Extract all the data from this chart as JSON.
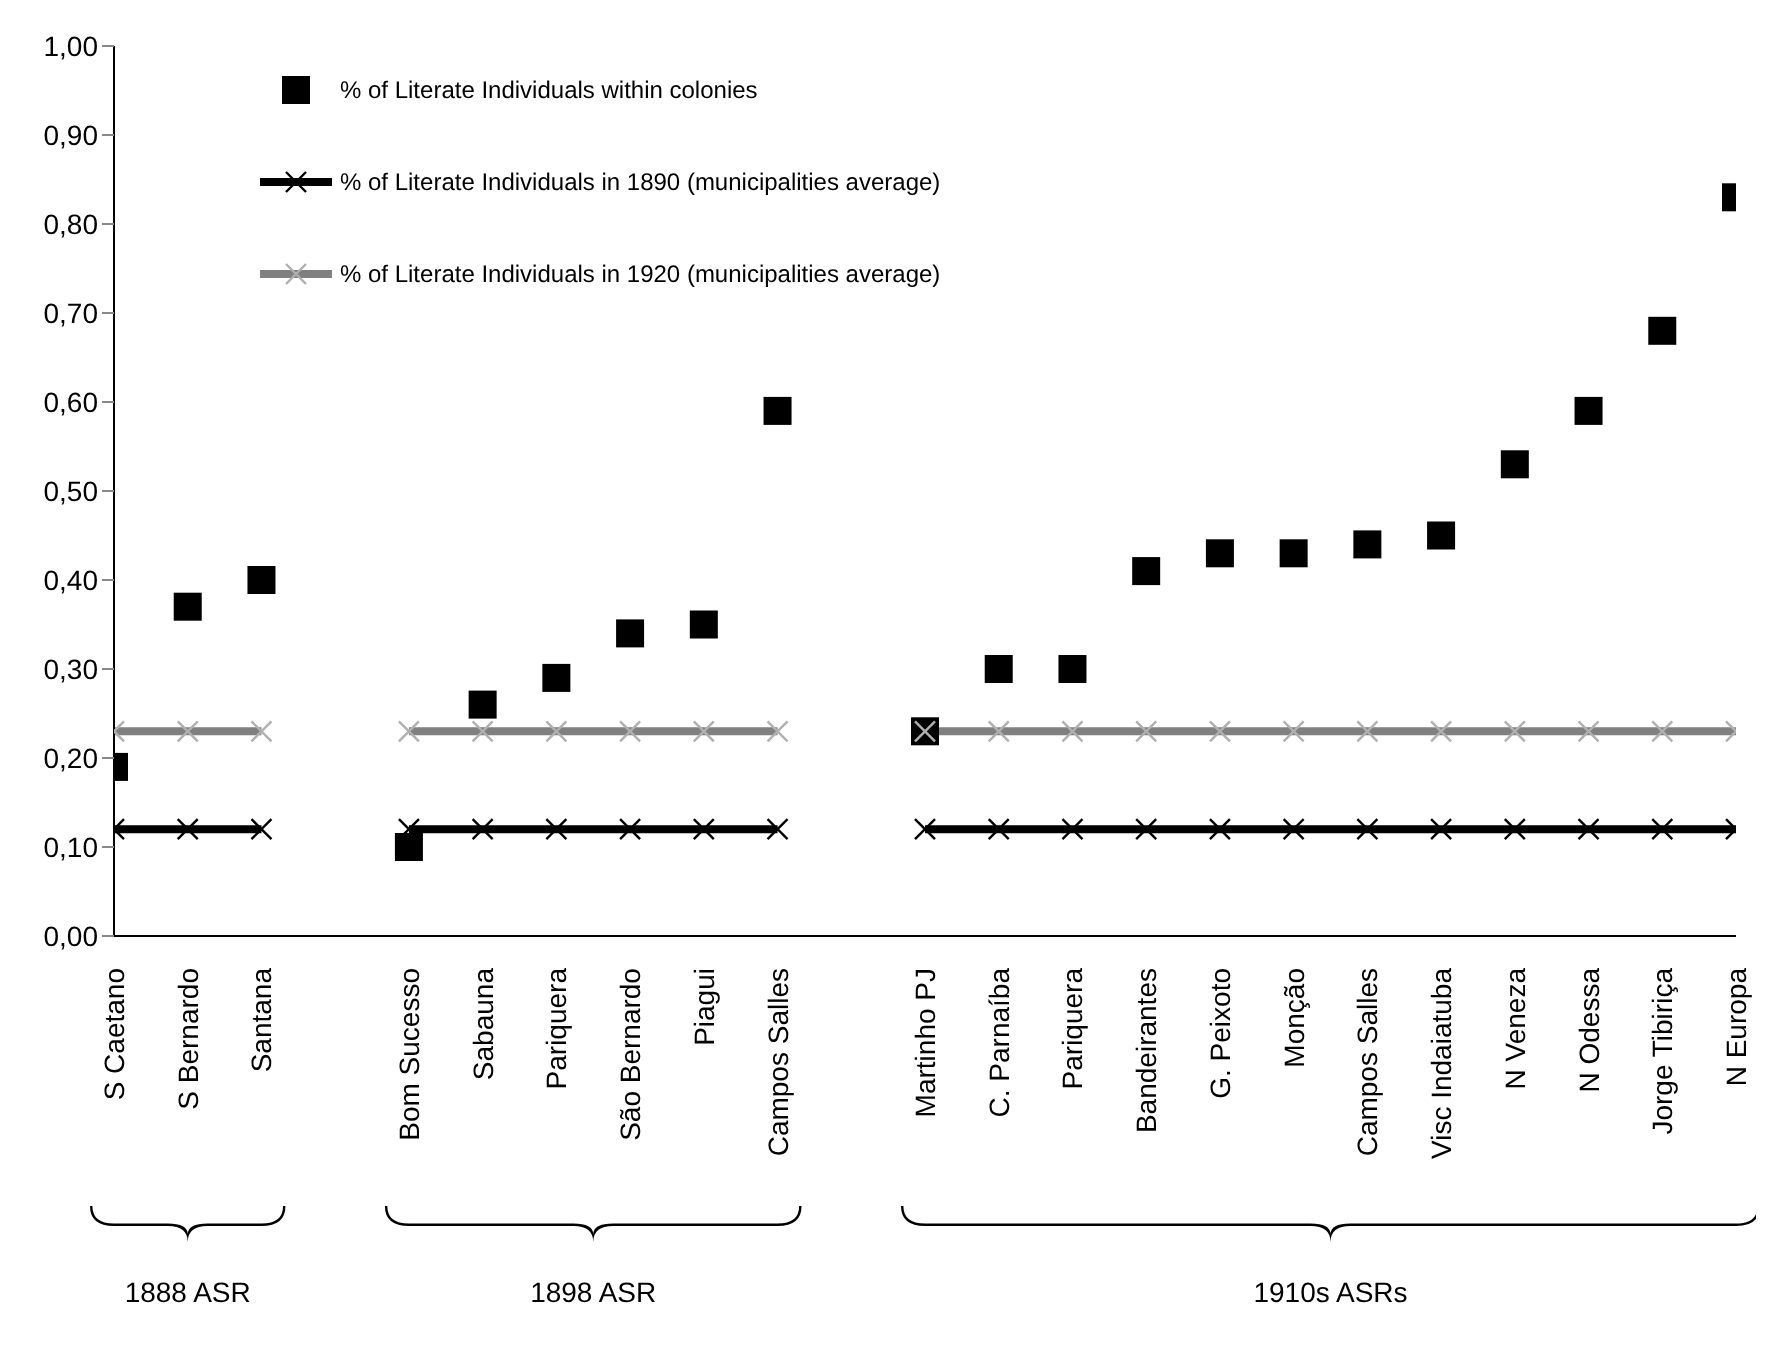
{
  "chart_data": {
    "type": "scatter",
    "categories": [
      "S Caetano",
      "S Bernardo",
      "Santana",
      null,
      "Bom Sucesso",
      "Sabauna",
      "Pariquera",
      "São Bernardo",
      "Piagui",
      "Campos Salles",
      null,
      "Martinho PJ",
      "C. Parnaíba",
      "Pariquera",
      "Bandeirantes",
      "G. Peixoto",
      "Monção",
      "Campos Salles",
      "Visc Indaiatuba",
      "N Veneza",
      "N Odessa",
      "Jorge Tibiriça",
      "N Europa"
    ],
    "series": [
      {
        "name": "% of Literate Individuals within colonies",
        "marker": "square",
        "color": "#000000",
        "values": [
          0.19,
          0.37,
          0.4,
          null,
          0.1,
          0.26,
          0.29,
          0.34,
          0.35,
          0.59,
          null,
          0.23,
          0.3,
          0.3,
          0.41,
          0.43,
          0.43,
          0.44,
          0.45,
          0.53,
          0.59,
          0.68,
          0.83
        ]
      },
      {
        "name": "% of Literate Individuals in 1890 (municipalities average)",
        "type": "line",
        "marker": "cross",
        "color": "#000000",
        "values": [
          0.12,
          0.12,
          0.12,
          null,
          0.12,
          0.12,
          0.12,
          0.12,
          0.12,
          0.12,
          null,
          0.12,
          0.12,
          0.12,
          0.12,
          0.12,
          0.12,
          0.12,
          0.12,
          0.12,
          0.12,
          0.12,
          0.12
        ]
      },
      {
        "name": "% of Literate Individuals in 1920 (municipalities average)",
        "type": "line",
        "marker": "cross",
        "color": "#808080",
        "values": [
          0.23,
          0.23,
          0.23,
          null,
          0.23,
          0.23,
          0.23,
          0.23,
          0.23,
          0.23,
          null,
          0.23,
          0.23,
          0.23,
          0.23,
          0.23,
          0.23,
          0.23,
          0.23,
          0.23,
          0.23,
          0.23,
          0.23
        ]
      }
    ],
    "ylim": [
      0,
      1
    ],
    "yticks": [
      {
        "value": 0,
        "label": "0,00"
      },
      {
        "value": 0.1,
        "label": "0,10"
      },
      {
        "value": 0.2,
        "label": "0,20"
      },
      {
        "value": 0.3,
        "label": "0,30"
      },
      {
        "value": 0.4,
        "label": "0,40"
      },
      {
        "value": 0.5,
        "label": "0,50"
      },
      {
        "value": 0.6,
        "label": "0,60"
      },
      {
        "value": 0.7,
        "label": "0,70"
      },
      {
        "value": 0.8,
        "label": "0,80"
      },
      {
        "value": 0.9,
        "label": "0,90"
      },
      {
        "value": 1,
        "label": "1,00"
      }
    ],
    "legend": "top left",
    "grid": false,
    "annotations": [
      "1888 ASR",
      "1898 ASR",
      "1910s ASRs"
    ]
  }
}
